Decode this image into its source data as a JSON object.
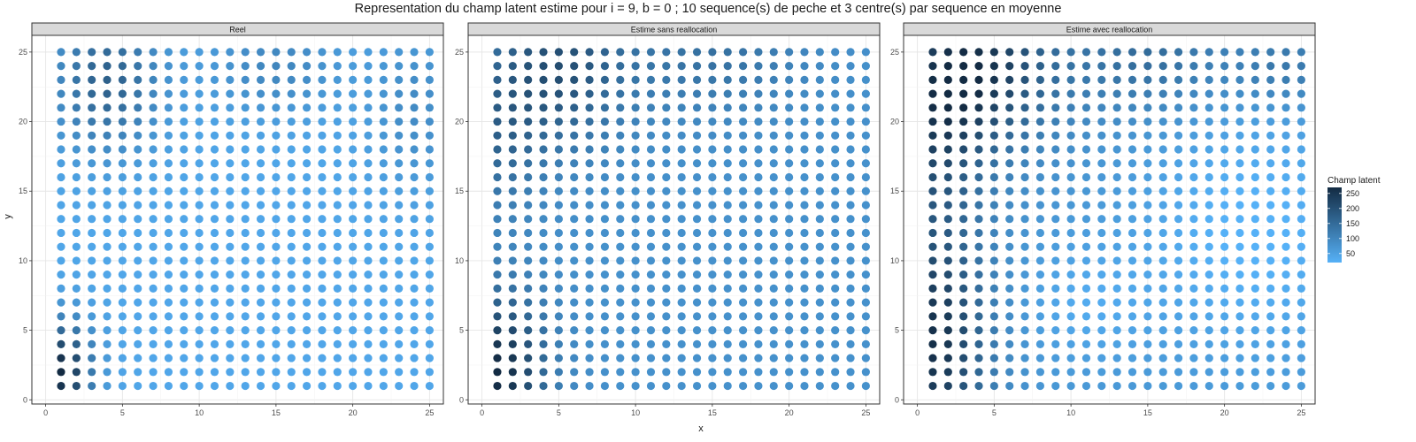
{
  "chart_data": {
    "type": "scatter",
    "title": "Representation du champ latent estime pour i = 9, b = 0 ; 10 sequence(s) de peche et 3 centre(s) par sequence en moyenne",
    "xlabel": "x",
    "ylabel": "y",
    "xlim": [
      0,
      25
    ],
    "ylim": [
      0,
      25
    ],
    "xticks": [
      0,
      5,
      10,
      15,
      20,
      25
    ],
    "yticks": [
      0,
      5,
      10,
      15,
      20,
      25
    ],
    "grid": true,
    "legend": {
      "title": "Champ latent",
      "placement": "right",
      "ticks": [
        250,
        200,
        150,
        100,
        50
      ],
      "range": [
        20,
        270
      ],
      "color_low": "#56B1F7",
      "color_high": "#132B43"
    },
    "grid_points": {
      "x_from": 1,
      "x_to": 25,
      "y_from": 1,
      "y_to": 25
    },
    "panels": [
      {
        "label": "Reel",
        "background": 40,
        "hotspots": [
          {
            "x": 1,
            "y": 2,
            "amp": 230,
            "sx": 1.4,
            "sy": 2.5
          },
          {
            "x": 4,
            "y": 23,
            "amp": 130,
            "sx": 2.4,
            "sy": 3.5
          },
          {
            "x": 15,
            "y": 24,
            "amp": 60,
            "sx": 3.0,
            "sy": 2.5
          },
          {
            "x": 24,
            "y": 21,
            "amp": 50,
            "sx": 2.0,
            "sy": 4.0
          }
        ]
      },
      {
        "label": "Estime sans reallocation",
        "background": 80,
        "hotspots": [
          {
            "x": 1,
            "y": 2,
            "amp": 190,
            "sx": 2.2,
            "sy": 4.0
          },
          {
            "x": 5,
            "y": 24,
            "amp": 120,
            "sx": 3.0,
            "sy": 4.0
          },
          {
            "x": 1,
            "y": 19,
            "amp": 70,
            "sx": 2.0,
            "sy": 4.0
          },
          {
            "x": 15,
            "y": 25,
            "amp": 60,
            "sx": 4.0,
            "sy": 3.0
          }
        ]
      },
      {
        "label": "Estime avec reallocation",
        "background": 70,
        "hotspots": [
          {
            "x": 1,
            "y": 4,
            "amp": 190,
            "sx": 2.5,
            "sy": 6.0
          },
          {
            "x": 4,
            "y": 24,
            "amp": 170,
            "sx": 3.5,
            "sy": 4.0
          },
          {
            "x": 1,
            "y": 19,
            "amp": 110,
            "sx": 2.5,
            "sy": 5.0
          },
          {
            "x": 15,
            "y": 25,
            "amp": 80,
            "sx": 3.5,
            "sy": 3.0
          },
          {
            "x": 24,
            "y": 24,
            "amp": 60,
            "sx": 2.5,
            "sy": 2.0
          },
          {
            "x": 22,
            "y": 12,
            "amp": -55,
            "sx": 5.0,
            "sy": 6.0
          },
          {
            "x": 11,
            "y": 7,
            "amp": -35,
            "sx": 3.0,
            "sy": 3.0
          }
        ]
      }
    ]
  }
}
